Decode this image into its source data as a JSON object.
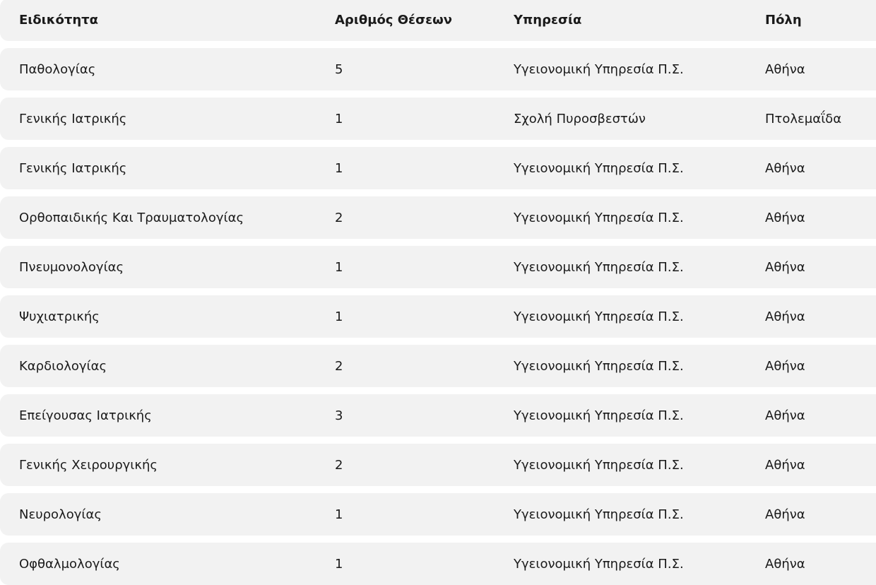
{
  "table": {
    "headers": [
      "Ειδικότητα",
      "Αριθμός Θέσεων",
      "Υπηρεσία",
      "Πόλη"
    ],
    "rows": [
      [
        "Παθολογίας",
        "5",
        "Υγειονομική Υπηρεσία Π.Σ.",
        "Αθήνα"
      ],
      [
        "Γενικής Ιατρικής",
        "1",
        "Σχολή Πυροσβεστών",
        "Πτολεμαΐδα"
      ],
      [
        "Γενικής Ιατρικής",
        "1",
        "Υγειονομική Υπηρεσία Π.Σ.",
        "Αθήνα"
      ],
      [
        "Ορθοπαιδικής Και Τραυματολογίας",
        "2",
        "Υγειονομική Υπηρεσία Π.Σ.",
        "Αθήνα"
      ],
      [
        "Πνευμονολογίας",
        "1",
        "Υγειονομική Υπηρεσία Π.Σ.",
        "Αθήνα"
      ],
      [
        "Ψυχιατρικής",
        "1",
        "Υγειονομική Υπηρεσία Π.Σ.",
        "Αθήνα"
      ],
      [
        "Καρδιολογίας",
        "2",
        "Υγειονομική Υπηρεσία Π.Σ.",
        "Αθήνα"
      ],
      [
        "Επείγουσας Ιατρικής",
        "3",
        "Υγειονομική Υπηρεσία Π.Σ.",
        "Αθήνα"
      ],
      [
        "Γενικής Χειρουργικής",
        "2",
        "Υγειονομική Υπηρεσία Π.Σ.",
        "Αθήνα"
      ],
      [
        "Νευρολογίας",
        "1",
        "Υγειονομική Υπηρεσία Π.Σ.",
        "Αθήνα"
      ],
      [
        "Οφθαλμολογίας",
        "1",
        "Υγειονομική Υπηρεσία Π.Σ.",
        "Αθήνα"
      ]
    ]
  },
  "colors": {
    "row_background": "#f2f2f2",
    "text": "#1a1a1a"
  }
}
